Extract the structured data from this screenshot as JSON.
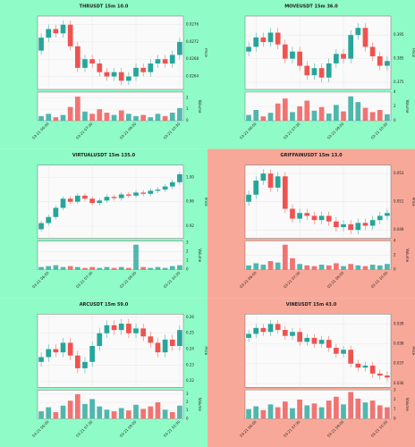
{
  "chart_data": [
    {
      "type": "candlestick",
      "title": "THRUSDT 15m 10.0",
      "background": "#8ffbc6",
      "up_color": "#26a69a",
      "down_color": "#ef5350",
      "ylabel": "Price",
      "vol_label": "Volume",
      "grid": true,
      "x": [
        null,
        "03-21 06:00",
        null,
        null,
        null,
        null,
        null,
        "03-21 07:30",
        null,
        null,
        null,
        null,
        null,
        "03-21 09:00",
        null,
        null,
        null,
        null,
        null,
        "03-21 10:30"
      ],
      "open": [
        0.027,
        0.0273,
        0.0275,
        0.0274,
        0.0276,
        0.0271,
        0.0266,
        0.0268,
        0.0267,
        0.0265,
        0.0264,
        0.0265,
        0.0263,
        0.0264,
        0.0266,
        0.0265,
        0.0267,
        0.0268,
        0.0267,
        0.0269
      ],
      "high": [
        0.0274,
        0.0276,
        0.0276,
        0.0277,
        0.0277,
        0.0272,
        0.0269,
        0.0269,
        0.0268,
        0.0266,
        0.0266,
        0.0266,
        0.0265,
        0.0267,
        0.0267,
        0.0268,
        0.0269,
        0.0269,
        0.027,
        0.0273
      ],
      "low": [
        0.0269,
        0.0272,
        0.0273,
        0.0273,
        0.027,
        0.0265,
        0.0265,
        0.0266,
        0.0264,
        0.0263,
        0.0263,
        0.0262,
        0.0262,
        0.0263,
        0.0264,
        0.0264,
        0.0266,
        0.0266,
        0.0266,
        0.0268
      ],
      "close": [
        0.0273,
        0.0275,
        0.0274,
        0.0276,
        0.0271,
        0.0266,
        0.0268,
        0.0267,
        0.0265,
        0.0264,
        0.0265,
        0.0263,
        0.0264,
        0.0266,
        0.0265,
        0.0267,
        0.0268,
        0.0267,
        0.0269,
        0.0272
      ],
      "volume": [
        0.4,
        0.6,
        0.3,
        0.5,
        1.2,
        2.1,
        0.8,
        0.6,
        1.0,
        0.7,
        0.5,
        0.9,
        0.6,
        0.4,
        0.5,
        0.3,
        0.6,
        0.4,
        0.7,
        1.1
      ],
      "ylim": [
        0.0261,
        0.0278
      ],
      "yticks": [
        0.0264,
        0.0268,
        0.0272,
        0.0276
      ],
      "vol_ylim": [
        0,
        2.5
      ],
      "vol_yticks": [
        0,
        1,
        2
      ]
    },
    {
      "type": "candlestick",
      "title": "MOVEUSDT 15m 36.0",
      "background": "#8ffbc6",
      "up_color": "#26a69a",
      "down_color": "#ef5350",
      "ylabel": "Price",
      "vol_label": "Volume",
      "grid": true,
      "x": [
        null,
        "03-21 06:00",
        null,
        null,
        null,
        null,
        null,
        "03-21 07:30",
        null,
        null,
        null,
        null,
        null,
        "03-21 09:00",
        null,
        null,
        null,
        null,
        null,
        "03-21 10:30"
      ],
      "open": [
        0.388,
        0.39,
        0.394,
        0.392,
        0.396,
        0.391,
        0.385,
        0.388,
        0.382,
        0.378,
        0.381,
        0.377,
        0.383,
        0.387,
        0.385,
        0.395,
        0.398,
        0.39,
        0.386,
        0.382
      ],
      "high": [
        0.392,
        0.396,
        0.396,
        0.398,
        0.398,
        0.393,
        0.39,
        0.39,
        0.384,
        0.383,
        0.383,
        0.385,
        0.389,
        0.389,
        0.397,
        0.4,
        0.4,
        0.392,
        0.388,
        0.386
      ],
      "low": [
        0.386,
        0.388,
        0.39,
        0.39,
        0.389,
        0.383,
        0.383,
        0.38,
        0.376,
        0.376,
        0.375,
        0.375,
        0.381,
        0.383,
        0.383,
        0.393,
        0.388,
        0.384,
        0.38,
        0.38
      ],
      "close": [
        0.39,
        0.394,
        0.392,
        0.396,
        0.391,
        0.385,
        0.388,
        0.382,
        0.378,
        0.381,
        0.377,
        0.383,
        0.387,
        0.385,
        0.395,
        0.398,
        0.39,
        0.386,
        0.382,
        0.384
      ],
      "volume": [
        0.8,
        1.5,
        0.6,
        1.1,
        2.4,
        3.1,
        1.2,
        2.0,
        2.8,
        1.4,
        1.9,
        1.0,
        2.2,
        1.3,
        3.4,
        2.6,
        1.8,
        1.2,
        1.5,
        0.9
      ],
      "ylim": [
        0.372,
        0.403
      ],
      "yticks": [
        0.375,
        0.385,
        0.395
      ],
      "vol_ylim": [
        0,
        4
      ],
      "vol_yticks": [
        0,
        2,
        4
      ]
    },
    {
      "type": "candlestick",
      "title": "VIRTUALUSDT 15m 135.0",
      "background": "#8ffbc6",
      "up_color": "#26a69a",
      "down_color": "#ef5350",
      "ylabel": "Price",
      "vol_label": "Volume",
      "grid": true,
      "x": [
        null,
        "03-21 06:00",
        null,
        null,
        null,
        null,
        null,
        "03-21 07:30",
        null,
        null,
        null,
        null,
        null,
        "03-21 09:00",
        null,
        null,
        null,
        null,
        null,
        "03-21 10:30"
      ],
      "open": [
        0.915,
        0.925,
        0.935,
        0.95,
        0.965,
        0.96,
        0.97,
        0.965,
        0.958,
        0.962,
        0.968,
        0.966,
        0.972,
        0.97,
        0.975,
        0.973,
        0.978,
        0.98,
        0.985,
        0.992
      ],
      "high": [
        0.929,
        0.939,
        0.954,
        0.969,
        0.969,
        0.974,
        0.974,
        0.969,
        0.966,
        0.972,
        0.972,
        0.976,
        0.976,
        0.979,
        0.979,
        0.982,
        0.984,
        0.989,
        0.996,
        1.009
      ],
      "low": [
        0.911,
        0.921,
        0.931,
        0.946,
        0.956,
        0.956,
        0.961,
        0.954,
        0.954,
        0.958,
        0.962,
        0.962,
        0.966,
        0.966,
        0.969,
        0.969,
        0.974,
        0.976,
        0.981,
        0.988
      ],
      "close": [
        0.925,
        0.935,
        0.95,
        0.965,
        0.96,
        0.97,
        0.965,
        0.958,
        0.962,
        0.968,
        0.966,
        0.972,
        0.97,
        0.975,
        0.973,
        0.978,
        0.98,
        0.985,
        0.992,
        1.005
      ],
      "volume": [
        0.3,
        0.4,
        0.5,
        0.3,
        0.4,
        0.3,
        0.2,
        0.3,
        0.2,
        0.3,
        0.2,
        0.3,
        0.2,
        2.8,
        0.3,
        0.2,
        0.3,
        0.2,
        0.4,
        0.5
      ],
      "ylim": [
        0.9,
        1.02
      ],
      "yticks": [
        0.92,
        0.96,
        {
          "value": 1,
          "label": "1.00"
        }
      ],
      "vol_ylim": [
        0,
        3.2
      ],
      "vol_yticks": [
        0,
        1,
        2,
        3
      ]
    },
    {
      "type": "candlestick",
      "title": "GRIFFAINUSDT 15m 13.0",
      "background": "#f8a898",
      "up_color": "#26a69a",
      "down_color": "#ef5350",
      "ylabel": "Price",
      "vol_label": "Volume",
      "grid": true,
      "x": [
        null,
        "03-21 06:00",
        null,
        null,
        null,
        null,
        null,
        "03-21 07:30",
        null,
        null,
        null,
        null,
        null,
        "03-21 09:00",
        null,
        null,
        null,
        null,
        null,
        "03-21 10:30"
      ],
      "open": [
        0.051,
        0.0515,
        0.0525,
        0.053,
        0.052,
        0.0528,
        0.0505,
        0.0498,
        0.0502,
        0.05,
        0.0497,
        0.05,
        0.0496,
        0.0492,
        0.0494,
        0.049,
        0.0495,
        0.0493,
        0.0497,
        0.05
      ],
      "high": [
        0.0518,
        0.0528,
        0.0533,
        0.0533,
        0.0531,
        0.0531,
        0.0508,
        0.0505,
        0.0505,
        0.0503,
        0.0503,
        0.0503,
        0.0499,
        0.0497,
        0.0497,
        0.0498,
        0.0498,
        0.05,
        0.0503,
        0.0505
      ],
      "low": [
        0.0507,
        0.0512,
        0.0522,
        0.0517,
        0.0517,
        0.0502,
        0.0495,
        0.0495,
        0.0497,
        0.0494,
        0.0494,
        0.0493,
        0.0489,
        0.0489,
        0.0487,
        0.0487,
        0.049,
        0.049,
        0.0494,
        0.0497
      ],
      "close": [
        0.0515,
        0.0525,
        0.053,
        0.052,
        0.0528,
        0.0505,
        0.0498,
        0.0502,
        0.05,
        0.0497,
        0.05,
        0.0496,
        0.0492,
        0.0494,
        0.049,
        0.0495,
        0.0493,
        0.0497,
        0.05,
        0.0502
      ],
      "volume": [
        0.6,
        0.9,
        0.7,
        1.2,
        1.0,
        3.5,
        1.6,
        0.8,
        0.6,
        0.5,
        0.7,
        0.6,
        0.9,
        0.5,
        0.8,
        0.6,
        0.5,
        0.7,
        0.6,
        0.8
      ],
      "ylim": [
        0.0484,
        0.0536
      ],
      "yticks": [
        0.049,
        0.051,
        0.053
      ],
      "vol_ylim": [
        0,
        4
      ],
      "vol_yticks": [
        0,
        2,
        4
      ]
    },
    {
      "type": "candlestick",
      "title": "ARCUSDT 15m 59.0",
      "background": "#8ffbc6",
      "up_color": "#26a69a",
      "down_color": "#ef5350",
      "ylabel": "Price",
      "vol_label": "Volume",
      "grid": true,
      "x": [
        null,
        "03-21 06:00",
        null,
        null,
        null,
        null,
        null,
        "03-21 07:30",
        null,
        null,
        null,
        null,
        null,
        "03-21 09:00",
        null,
        null,
        null,
        null,
        null,
        "03-21 10:30"
      ],
      "open": [
        0.232,
        0.235,
        0.24,
        0.238,
        0.244,
        0.236,
        0.228,
        0.232,
        0.242,
        0.25,
        0.255,
        0.252,
        0.256,
        0.25,
        0.253,
        0.248,
        0.244,
        0.238,
        0.246,
        0.242
      ],
      "high": [
        0.238,
        0.243,
        0.243,
        0.247,
        0.247,
        0.239,
        0.235,
        0.245,
        0.253,
        0.258,
        0.258,
        0.259,
        0.259,
        0.256,
        0.256,
        0.251,
        0.247,
        0.249,
        0.249,
        0.255
      ],
      "low": [
        0.229,
        0.232,
        0.235,
        0.235,
        0.233,
        0.225,
        0.225,
        0.229,
        0.239,
        0.247,
        0.249,
        0.249,
        0.247,
        0.247,
        0.245,
        0.241,
        0.235,
        0.235,
        0.239,
        0.239
      ],
      "close": [
        0.235,
        0.24,
        0.238,
        0.244,
        0.236,
        0.228,
        0.232,
        0.242,
        0.25,
        0.255,
        0.252,
        0.256,
        0.25,
        0.253,
        0.248,
        0.244,
        0.238,
        0.246,
        0.242,
        0.252
      ],
      "volume": [
        0.9,
        1.4,
        0.8,
        1.6,
        2.2,
        3.0,
        1.8,
        2.4,
        1.5,
        1.1,
        0.9,
        1.3,
        1.0,
        1.7,
        1.2,
        1.5,
        2.0,
        1.1,
        0.8,
        1.6
      ],
      "ylim": [
        0.216,
        0.262
      ],
      "yticks": [
        0.22,
        0.23,
        0.24,
        0.25,
        0.26
      ],
      "vol_ylim": [
        0,
        3.5
      ],
      "vol_yticks": [
        0,
        1,
        2,
        3
      ]
    },
    {
      "type": "candlestick",
      "title": "VINEUSDT 15m 43.0",
      "background": "#f8a898",
      "up_color": "#26a69a",
      "down_color": "#ef5350",
      "ylabel": "Price",
      "vol_label": "Volume",
      "grid": true,
      "x": [
        null,
        "03-21 06:00",
        null,
        null,
        null,
        null,
        null,
        "03-21 07:30",
        null,
        null,
        null,
        null,
        null,
        "03-21 09:00",
        null,
        null,
        null,
        null,
        null,
        "03-21 10:30"
      ],
      "open": [
        0.0383,
        0.0385,
        0.0388,
        0.0386,
        0.039,
        0.0387,
        0.0384,
        0.0386,
        0.0381,
        0.0383,
        0.038,
        0.0382,
        0.0378,
        0.0375,
        0.0377,
        0.037,
        0.0368,
        0.0369,
        0.0365,
        0.0364
      ],
      "high": [
        0.0387,
        0.039,
        0.039,
        0.0392,
        0.0392,
        0.0389,
        0.0388,
        0.0388,
        0.0385,
        0.0385,
        0.0384,
        0.0384,
        0.038,
        0.0379,
        0.0379,
        0.0372,
        0.0371,
        0.0371,
        0.0367,
        0.0366
      ],
      "low": [
        0.0381,
        0.0383,
        0.0384,
        0.0384,
        0.0385,
        0.0382,
        0.0382,
        0.0379,
        0.0379,
        0.0378,
        0.0378,
        0.0376,
        0.0373,
        0.0373,
        0.0368,
        0.0366,
        0.0366,
        0.0363,
        0.0362,
        0.0361
      ],
      "close": [
        0.0385,
        0.0388,
        0.0386,
        0.039,
        0.0387,
        0.0384,
        0.0386,
        0.0381,
        0.0383,
        0.038,
        0.0382,
        0.0378,
        0.0375,
        0.0377,
        0.037,
        0.0368,
        0.0369,
        0.0365,
        0.0364,
        0.0363
      ],
      "volume": [
        1.0,
        1.3,
        0.9,
        1.5,
        1.2,
        1.8,
        1.1,
        2.0,
        1.4,
        1.6,
        1.2,
        1.9,
        2.3,
        1.5,
        2.8,
        2.1,
        1.7,
        1.9,
        1.4,
        1.2
      ],
      "ylim": [
        0.0358,
        0.0395
      ],
      "yticks": [
        0.036,
        0.037,
        0.038,
        0.039
      ],
      "vol_ylim": [
        0,
        3
      ],
      "vol_yticks": [
        0,
        1,
        2,
        3
      ]
    }
  ]
}
